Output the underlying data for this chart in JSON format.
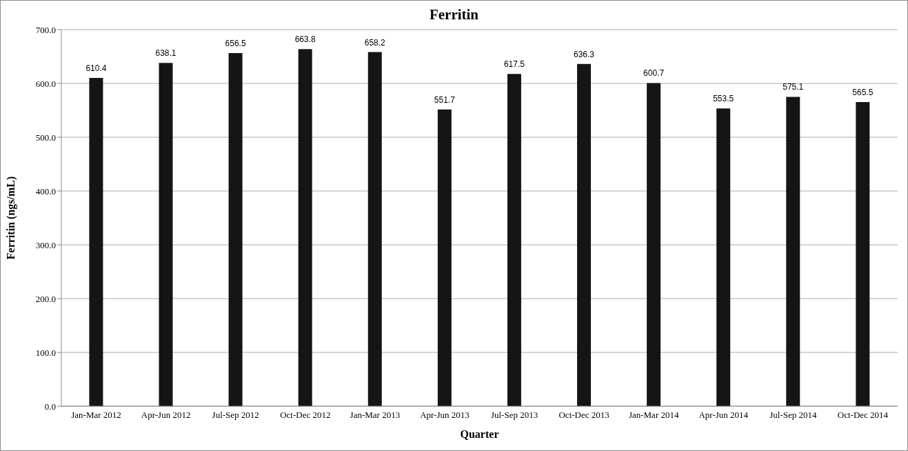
{
  "chart_data": {
    "type": "bar",
    "title": "Ferritin",
    "xlabel": "Quarter",
    "ylabel": "Ferritin (ngs/mL)",
    "categories": [
      "Jan-Mar 2012",
      "Apr-Jun 2012",
      "Jul-Sep 2012",
      "Oct-Dec 2012",
      "Jan-Mar 2013",
      "Apr-Jun 2013",
      "Jul-Sep 2013",
      "Oct-Dec 2013",
      "Jan-Mar 2014",
      "Apr-Jun 2014",
      "Jul-Sep 2014",
      "Oct-Dec 2014"
    ],
    "values": [
      610.4,
      638.1,
      656.5,
      663.8,
      658.2,
      551.7,
      617.5,
      636.3,
      600.7,
      553.5,
      575.1,
      565.5
    ],
    "color": "#151515",
    "ylim": [
      0,
      700
    ],
    "yticks": [
      {
        "value": 0,
        "label": "0.0"
      },
      {
        "value": 100,
        "label": "100.0"
      },
      {
        "value": 200,
        "label": "200.0"
      },
      {
        "value": 300,
        "label": "300.0"
      },
      {
        "value": 400,
        "label": "400.0"
      },
      {
        "value": 500,
        "label": "500.0"
      },
      {
        "value": 600,
        "label": "600.0"
      },
      {
        "value": 700,
        "label": "700.0"
      }
    ],
    "grid": "y",
    "data_labels": true,
    "legend": false
  }
}
